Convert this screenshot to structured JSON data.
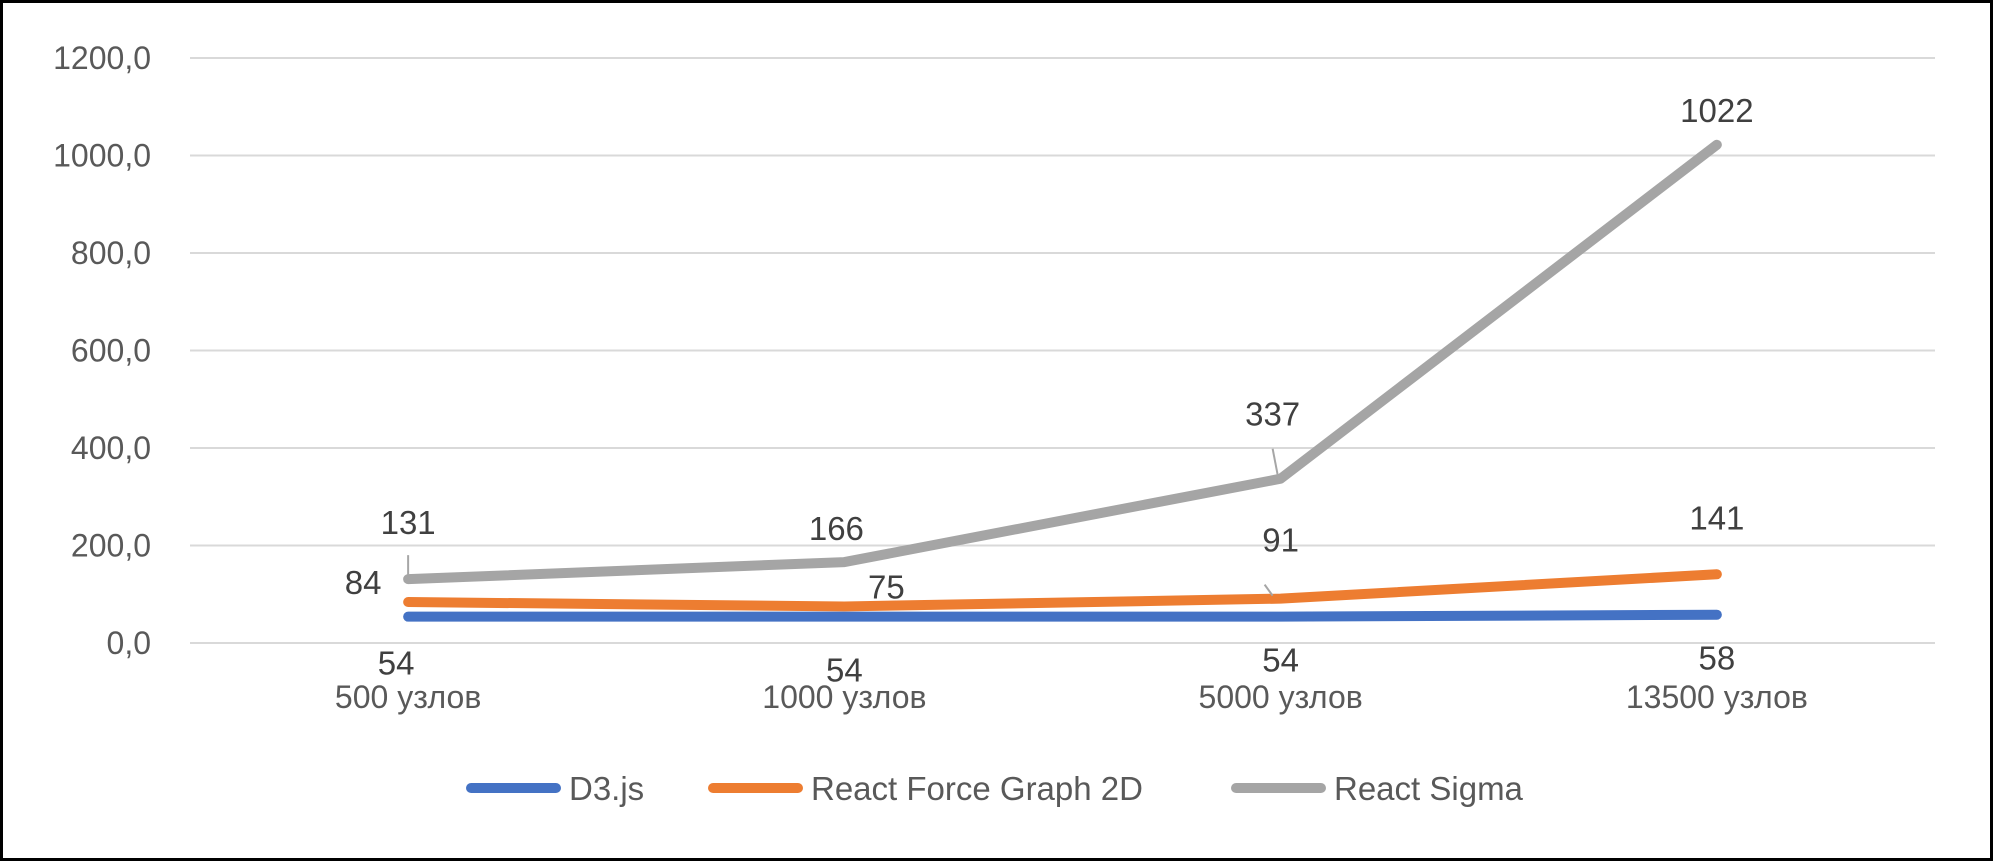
{
  "chart_data": {
    "type": "line",
    "title": "",
    "xlabel": "",
    "ylabel": "",
    "categories": [
      "500 узлов",
      "1000 узлов",
      "5000 узлов",
      "13500 узлов"
    ],
    "ylim": [
      0,
      1200
    ],
    "y_ticks": [
      "0,0",
      "200,0",
      "400,0",
      "600,0",
      "800,0",
      "1000,0",
      "1200,0"
    ],
    "y_tick_values": [
      0,
      200,
      400,
      600,
      800,
      1000,
      1200
    ],
    "grid": true,
    "legend_position": "bottom",
    "series": [
      {
        "name": "D3.js",
        "values": [
          54,
          54,
          54,
          58
        ],
        "labels": [
          "54",
          "54",
          "54",
          "58"
        ],
        "color": "#4472c4"
      },
      {
        "name": "React Force Graph 2D",
        "values": [
          84,
          75,
          91,
          141
        ],
        "labels": [
          "84",
          "75",
          "91",
          "141"
        ],
        "color": "#ed7d31"
      },
      {
        "name": "React Sigma",
        "values": [
          131,
          166,
          337,
          1022
        ],
        "labels": [
          "131",
          "166",
          "337",
          "1022"
        ],
        "color": "#a5a5a5"
      }
    ]
  }
}
